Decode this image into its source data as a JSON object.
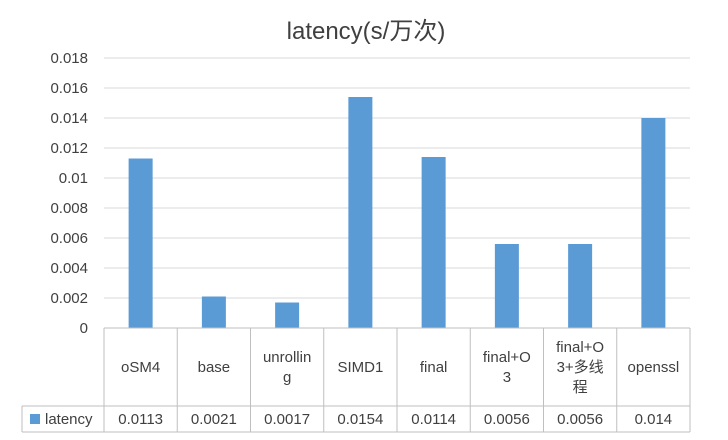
{
  "chart_data": {
    "type": "bar",
    "title": "latency(s/万次)",
    "categories": [
      "oSM4",
      "base",
      "unrolling",
      "SIMD1",
      "final",
      "final+O3",
      "final+O3+多线程",
      "openssl"
    ],
    "category_lines": [
      [
        "oSM4"
      ],
      [
        "base"
      ],
      [
        "unrollin",
        "g"
      ],
      [
        "SIMD1"
      ],
      [
        "final"
      ],
      [
        "final+O",
        "3"
      ],
      [
        "final+O",
        "3+多线",
        "程"
      ],
      [
        "openssl"
      ]
    ],
    "series": [
      {
        "name": "latency",
        "values": [
          0.0113,
          0.0021,
          0.0017,
          0.0154,
          0.0114,
          0.0056,
          0.0056,
          0.014
        ]
      }
    ],
    "data_table": [
      "0.0113",
      "0.0021",
      "0.0017",
      "0.0154",
      "0.0114",
      "0.0056",
      "0.0056",
      "0.014"
    ],
    "yticks": [
      "0",
      "0.002",
      "0.004",
      "0.006",
      "0.008",
      "0.01",
      "0.012",
      "0.014",
      "0.016",
      "0.018"
    ],
    "ylim": [
      0,
      0.018
    ],
    "grid": true,
    "legend": "data-table-left",
    "colors": {
      "bar": "#5b9bd5",
      "grid": "#d9d9d9",
      "text": "#404040"
    }
  }
}
